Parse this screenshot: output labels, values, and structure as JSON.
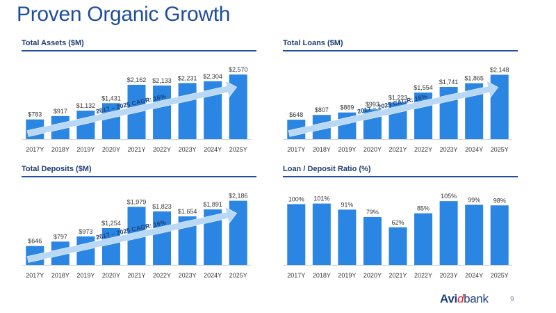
{
  "page": {
    "title": "Proven Organic Growth",
    "page_number": "9"
  },
  "brand": {
    "part1": "Avi",
    "part2": "d",
    "part3": "bank"
  },
  "colors": {
    "bar": "#2a86e2",
    "title": "#1f4e9a",
    "arrow": "#b8d8f6",
    "arrow_text": "#1f3f77"
  },
  "chart_data": [
    {
      "type": "bar",
      "title": "Total Assets ($M)",
      "categories": [
        "2017Y",
        "2018Y",
        "2019Y",
        "2020Y",
        "2021Y",
        "2022Y",
        "2023Y",
        "2024Y",
        "2025Y"
      ],
      "values": [
        783,
        917,
        1132,
        1431,
        2162,
        2133,
        2231,
        2304,
        2570
      ],
      "value_labels": [
        "$783",
        "$917",
        "$1,132",
        "$1,431",
        "$2,162",
        "$2,133",
        "$2,231",
        "$2,304",
        "$2,570"
      ],
      "ylim": [
        0,
        3100
      ],
      "annotation": "2017 – 2025 CAGR: 16%",
      "grid": false
    },
    {
      "type": "bar",
      "title": "Total Loans ($M)",
      "categories": [
        "2017Y",
        "2018Y",
        "2019Y",
        "2020Y",
        "2021Y",
        "2022Y",
        "2023Y",
        "2024Y",
        "2025Y"
      ],
      "values": [
        648,
        807,
        889,
        993,
        1223,
        1554,
        1741,
        1865,
        2148
      ],
      "value_labels": [
        "$648",
        "$807",
        "$889",
        "$993",
        "$1,223",
        "$1,554",
        "$1,741",
        "$1,865",
        "$2,148"
      ],
      "ylim": [
        0,
        2600
      ],
      "annotation": "2017 – 2025 CAGR: 16%",
      "grid": false
    },
    {
      "type": "bar",
      "title": "Total Deposits ($M)",
      "categories": [
        "2017Y",
        "2018Y",
        "2019Y",
        "2020Y",
        "2021Y",
        "2022Y",
        "2023Y",
        "2024Y",
        "2025Y"
      ],
      "values": [
        646,
        797,
        973,
        1254,
        1979,
        1823,
        1654,
        1891,
        2186
      ],
      "value_labels": [
        "$646",
        "$797",
        "$973",
        "$1,254",
        "$1,979",
        "$1,823",
        "$1,654",
        "$1,891",
        "$2,186"
      ],
      "ylim": [
        0,
        2650
      ],
      "annotation": "2017 – 2025 CAGR: 16%",
      "grid": false
    },
    {
      "type": "bar",
      "title": "Loan / Deposit Ratio (%)",
      "categories": [
        "2017Y",
        "2018Y",
        "2019Y",
        "2020Y",
        "2021Y",
        "2022Y",
        "2023Y",
        "2024Y",
        "2025Y"
      ],
      "values": [
        100,
        101,
        91,
        79,
        62,
        85,
        105,
        99,
        98
      ],
      "value_labels": [
        "100%",
        "101%",
        "91%",
        "79%",
        "62%",
        "85%",
        "105%",
        "99%",
        "98%"
      ],
      "ylim": [
        0,
        128
      ],
      "grid": false
    }
  ]
}
